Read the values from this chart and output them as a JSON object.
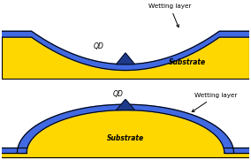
{
  "background_color": "#ffffff",
  "outline_color": "#000000",
  "yellow_color": "#FFD700",
  "blue_color": "#4169E1",
  "dark_blue_color": "#1E3A8A",
  "panel1": {
    "title": "Wetting layer",
    "substrate_label": "Substrate",
    "qd_label": "QD"
  },
  "panel2": {
    "title": "Wetting layer",
    "substrate_label": "Substrate",
    "qd_label": "QD"
  }
}
